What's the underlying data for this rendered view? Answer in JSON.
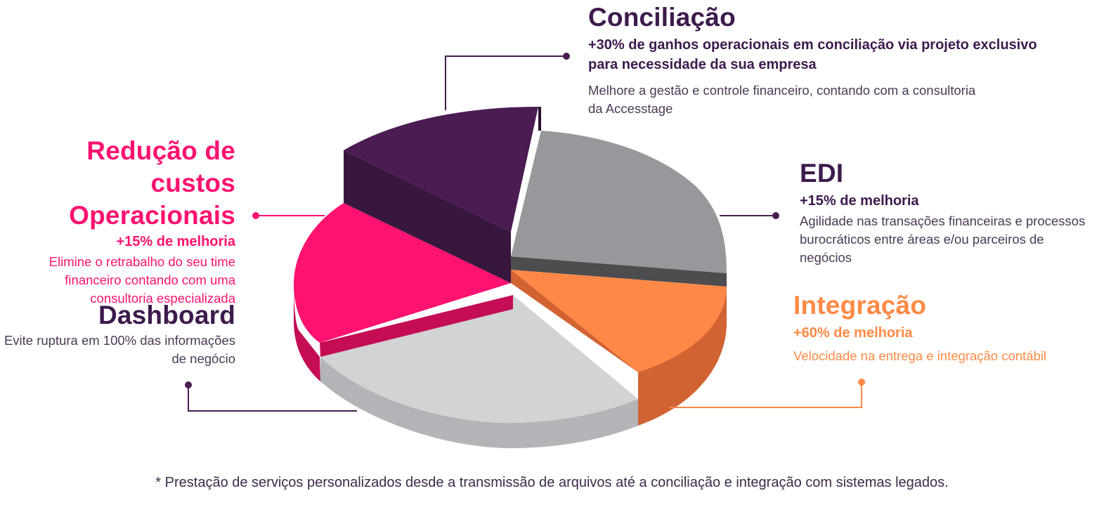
{
  "colors": {
    "conciliacao": "#4a1c52",
    "edi": "#97989c",
    "integracao": "#ff8847",
    "dashboard": "#d1d3d4",
    "reducao": "#ff1270",
    "dark_text": "#3d1a4c"
  },
  "segments": {
    "conciliacao": {
      "title": "Conciliação",
      "subtitle": "+30% de ganhos operacionais em conciliação via projeto exclusivo para necessidade da sua empresa",
      "description": "Melhore a gestão e controle financeiro, contando com a consultoria da Accesstage"
    },
    "edi": {
      "title": "EDI",
      "subtitle": "+15% de melhoria",
      "description": "Agilidade nas transações financeiras e processos  burocráticos entre áreas e/ou parceiros de negócios"
    },
    "integracao": {
      "title": "Integração",
      "subtitle": "+60% de melhoria",
      "description": "Velocidade na entrega e integração contábil"
    },
    "reducao": {
      "title_line1": "Redução de custos",
      "title_line2": "Operacionais",
      "subtitle": "+15% de melhoria",
      "description": "Elimine o retrabalho do seu time financeiro contando com uma consultoria especializada"
    },
    "dashboard": {
      "title": "Dashboard",
      "description": "Evite ruptura em 100% das informações de negócio"
    }
  },
  "footnote": "* Prestação de serviços personalizados desde a transmissão de arquivos até a conciliação e integração com sistemas legados."
}
